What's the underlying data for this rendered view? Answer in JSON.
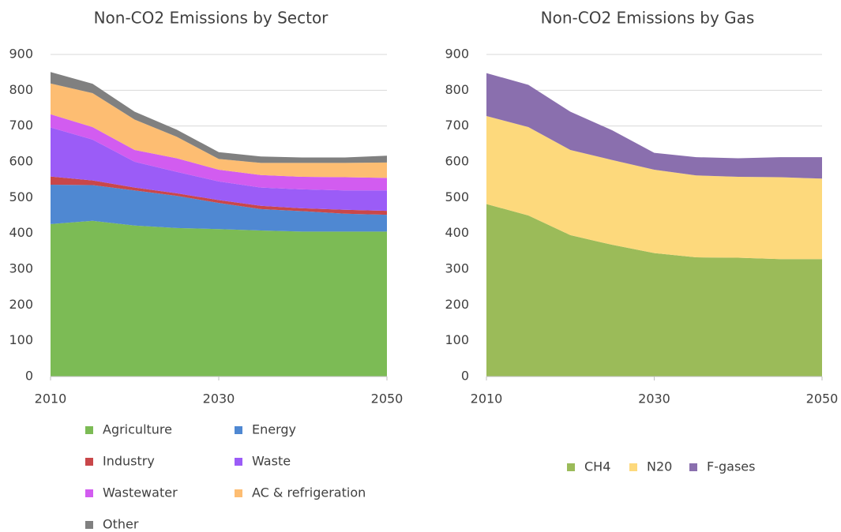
{
  "chart_data": [
    {
      "type": "stacked_area",
      "title": "Non-CO2 Emissions by Sector",
      "x": [
        2010,
        2015,
        2020,
        2025,
        2030,
        2035,
        2040,
        2045,
        2050
      ],
      "xlim": [
        2010,
        2050
      ],
      "xticks": [
        2010,
        2030,
        2050
      ],
      "ylim": [
        0,
        900
      ],
      "yticks": [
        0,
        100,
        200,
        300,
        400,
        500,
        600,
        700,
        800,
        900
      ],
      "grid": true,
      "legend": "bottom",
      "series": [
        {
          "name": "Agriculture",
          "color": "#7cbb55",
          "values": [
            426,
            435,
            422,
            415,
            412,
            408,
            405,
            405,
            405
          ]
        },
        {
          "name": "Energy",
          "color": "#4f88d2",
          "values": [
            110,
            100,
            98,
            90,
            73,
            60,
            57,
            50,
            47
          ]
        },
        {
          "name": "Industry",
          "color": "#c9474a",
          "values": [
            23,
            13,
            8,
            7,
            8,
            9,
            8,
            11,
            11
          ]
        },
        {
          "name": "Waste",
          "color": "#9b5cf7",
          "values": [
            137,
            114,
            72,
            60,
            52,
            51,
            53,
            54,
            57
          ]
        },
        {
          "name": "Wastewater",
          "color": "#d25cf0",
          "values": [
            37,
            35,
            33,
            38,
            33,
            35,
            35,
            37,
            35
          ]
        },
        {
          "name": "AC & refrigeration",
          "color": "#fdbd72",
          "values": [
            86,
            95,
            85,
            60,
            30,
            34,
            39,
            40,
            43
          ]
        },
        {
          "name": "Other",
          "color": "#808080",
          "values": [
            32,
            26,
            22,
            20,
            19,
            18,
            15,
            15,
            19
          ]
        }
      ]
    },
    {
      "type": "stacked_area",
      "title": "Non-CO2 Emissions by Gas",
      "x": [
        2010,
        2015,
        2020,
        2025,
        2030,
        2035,
        2040,
        2045,
        2050
      ],
      "xlim": [
        2010,
        2050
      ],
      "xticks": [
        2010,
        2030,
        2050
      ],
      "ylim": [
        0,
        900
      ],
      "yticks": [
        0,
        100,
        200,
        300,
        400,
        500,
        600,
        700,
        800,
        900
      ],
      "grid": true,
      "legend": "bottom",
      "series": [
        {
          "name": "CH4",
          "color": "#9bbb59",
          "values": [
            482,
            450,
            395,
            368,
            345,
            333,
            332,
            328,
            328
          ]
        },
        {
          "name": "N20",
          "color": "#fdd97c",
          "values": [
            246,
            247,
            238,
            237,
            233,
            229,
            226,
            229,
            225
          ]
        },
        {
          "name": "F-gases",
          "color": "#8a6fae",
          "values": [
            120,
            118,
            107,
            83,
            47,
            51,
            52,
            56,
            60
          ]
        }
      ]
    }
  ]
}
